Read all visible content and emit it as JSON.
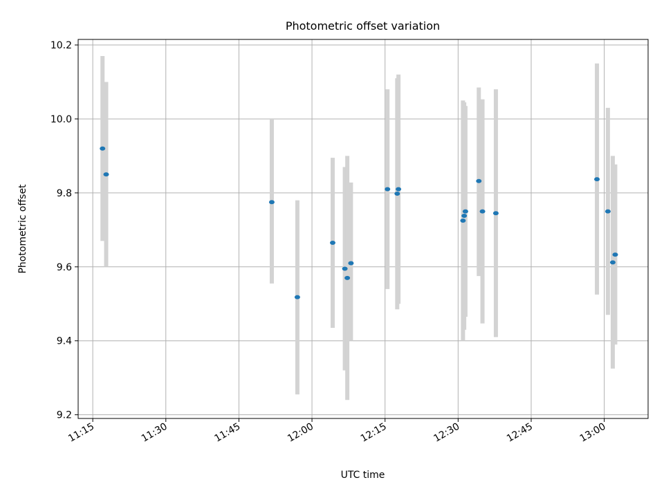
{
  "chart_data": {
    "type": "scatter",
    "title": "Photometric offset variation",
    "xlabel": "UTC time",
    "ylabel": "Photometric offset",
    "x_ticks": [
      "11:15",
      "11:30",
      "11:45",
      "12:00",
      "12:15",
      "12:30",
      "12:45",
      "13:00"
    ],
    "xlim": [
      "11:12",
      "13:09"
    ],
    "y_ticks": [
      "9.2",
      "9.4",
      "9.6",
      "9.8",
      "10.0",
      "10.2"
    ],
    "ylim": [
      9.19,
      10.215
    ],
    "grid": true,
    "errorbar_color": "#d3d3d3",
    "point_color": "#1f77b4",
    "series": [
      {
        "points": [
          {
            "x": "11:17:00",
            "y": 9.92,
            "low": 9.67,
            "high": 10.17
          },
          {
            "x": "11:17:45",
            "y": 9.85,
            "low": 9.6,
            "high": 10.1
          },
          {
            "x": "11:51:45",
            "y": 9.775,
            "low": 9.555,
            "high": 10.0
          },
          {
            "x": "11:57:00",
            "y": 9.518,
            "low": 9.255,
            "high": 9.78
          },
          {
            "x": "12:04:15",
            "y": 9.665,
            "low": 9.435,
            "high": 9.895
          },
          {
            "x": "12:06:45",
            "y": 9.595,
            "low": 9.32,
            "high": 9.87
          },
          {
            "x": "12:07:15",
            "y": 9.57,
            "low": 9.24,
            "high": 9.9
          },
          {
            "x": "12:08:00",
            "y": 9.61,
            "low": 9.4,
            "high": 9.828
          },
          {
            "x": "12:15:30",
            "y": 9.81,
            "low": 9.54,
            "high": 10.08
          },
          {
            "x": "12:17:30",
            "y": 9.798,
            "low": 9.485,
            "high": 10.11
          },
          {
            "x": "12:17:45",
            "y": 9.81,
            "low": 9.5,
            "high": 10.12
          },
          {
            "x": "12:31:00",
            "y": 9.725,
            "low": 9.4,
            "high": 10.05
          },
          {
            "x": "12:31:15",
            "y": 9.738,
            "low": 9.43,
            "high": 10.045
          },
          {
            "x": "12:31:30",
            "y": 9.75,
            "low": 9.465,
            "high": 10.035
          },
          {
            "x": "12:34:15",
            "y": 9.832,
            "low": 9.575,
            "high": 10.085
          },
          {
            "x": "12:35:00",
            "y": 9.75,
            "low": 9.447,
            "high": 10.053
          },
          {
            "x": "12:37:45",
            "y": 9.745,
            "low": 9.41,
            "high": 10.08
          },
          {
            "x": "12:58:30",
            "y": 9.837,
            "low": 9.525,
            "high": 10.15
          },
          {
            "x": "13:00:45",
            "y": 9.75,
            "low": 9.47,
            "high": 10.03
          },
          {
            "x": "13:01:45",
            "y": 9.612,
            "low": 9.325,
            "high": 9.9
          },
          {
            "x": "13:02:15",
            "y": 9.633,
            "low": 9.39,
            "high": 9.877
          }
        ]
      }
    ]
  }
}
